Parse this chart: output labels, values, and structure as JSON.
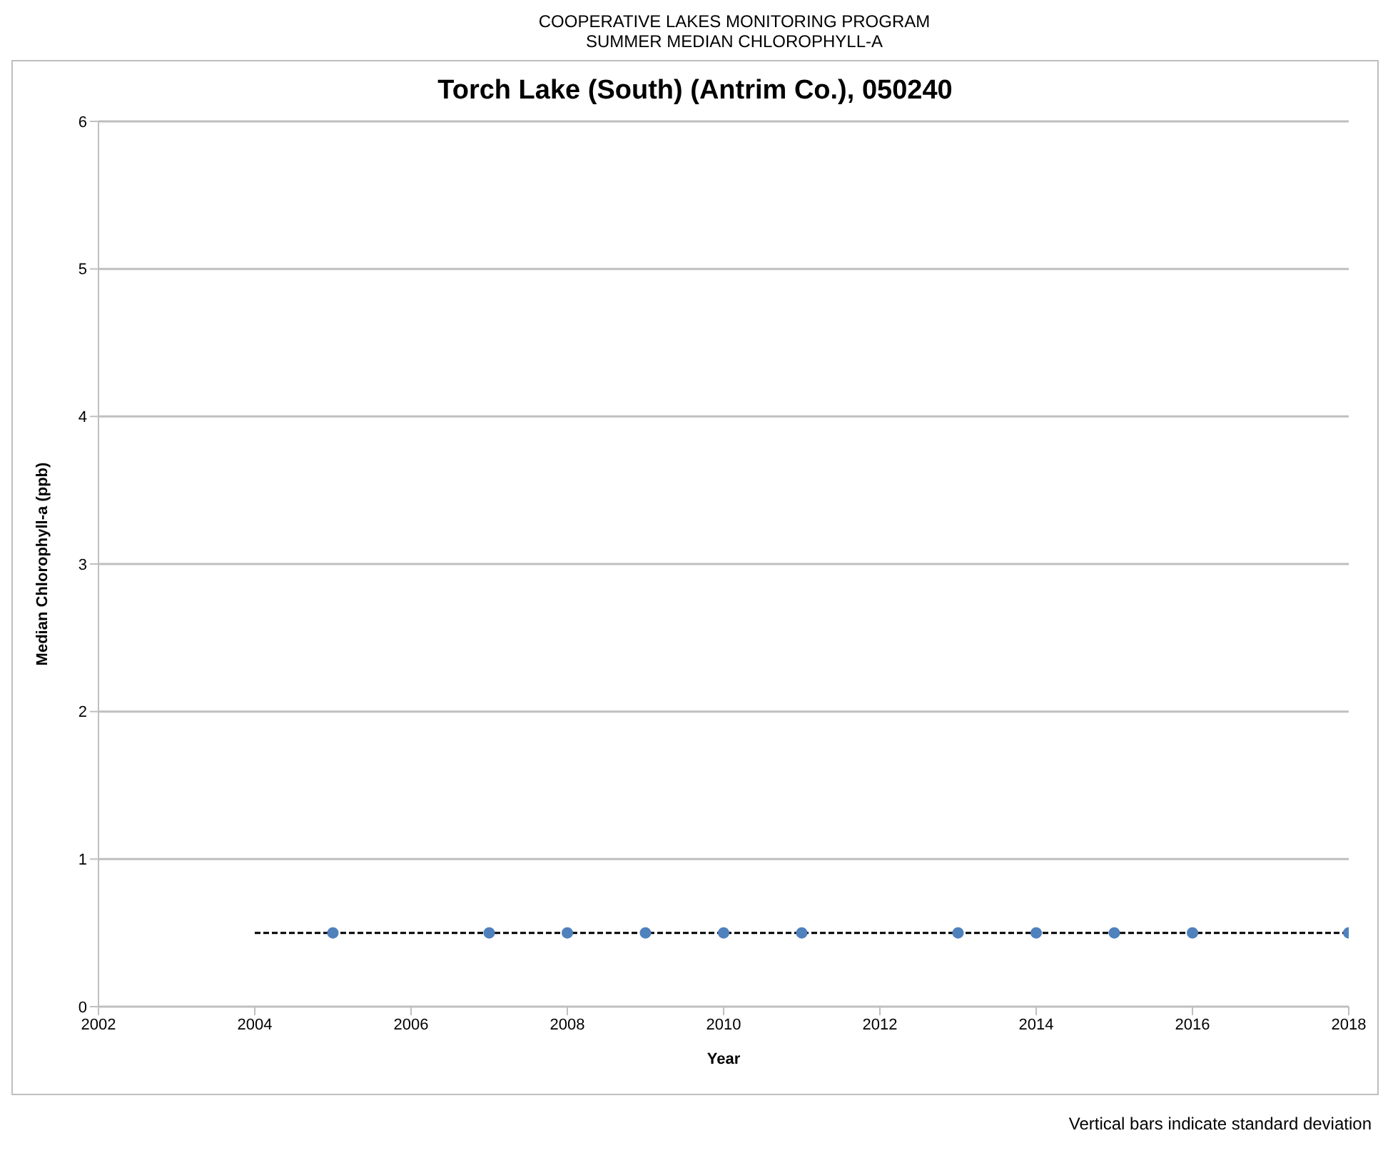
{
  "chart_data": {
    "type": "scatter",
    "title": "Torch Lake (South) (Antrim Co.), 050240",
    "subtitle": "COOPERATIVE LAKES MONITORING PROGRAM\nSUMMER MEDIAN CHLOROPHYLL-A",
    "xlabel": "Year",
    "ylabel": "Median Chlorophyll-a (ppb)",
    "x": [
      2005,
      2007,
      2008,
      2009,
      2010,
      2011,
      2013,
      2014,
      2015,
      2016,
      2018
    ],
    "series": [
      {
        "color": "#4f81bd",
        "marker": "circle",
        "values": [
          0.5,
          0.5,
          0.5,
          0.5,
          0.5,
          0.5,
          0.5,
          0.5,
          0.5,
          0.5,
          0.5
        ]
      },
      {
        "type": "line",
        "color": "#000000",
        "line_style": "dashed",
        "marker": "none",
        "x": [
          2004,
          2018
        ],
        "values": [
          0.5,
          0.5
        ]
      }
    ],
    "xlim": [
      2002,
      2018
    ],
    "xticks": [
      2002,
      2004,
      2006,
      2008,
      2010,
      2012,
      2014,
      2016,
      2018
    ],
    "ylim": [
      0,
      6
    ],
    "yticks": [
      0,
      1,
      2,
      3,
      4,
      5,
      6
    ],
    "grid": "y",
    "legend": false,
    "annotations": [
      "Vertical bars indicate standard deviation"
    ]
  }
}
